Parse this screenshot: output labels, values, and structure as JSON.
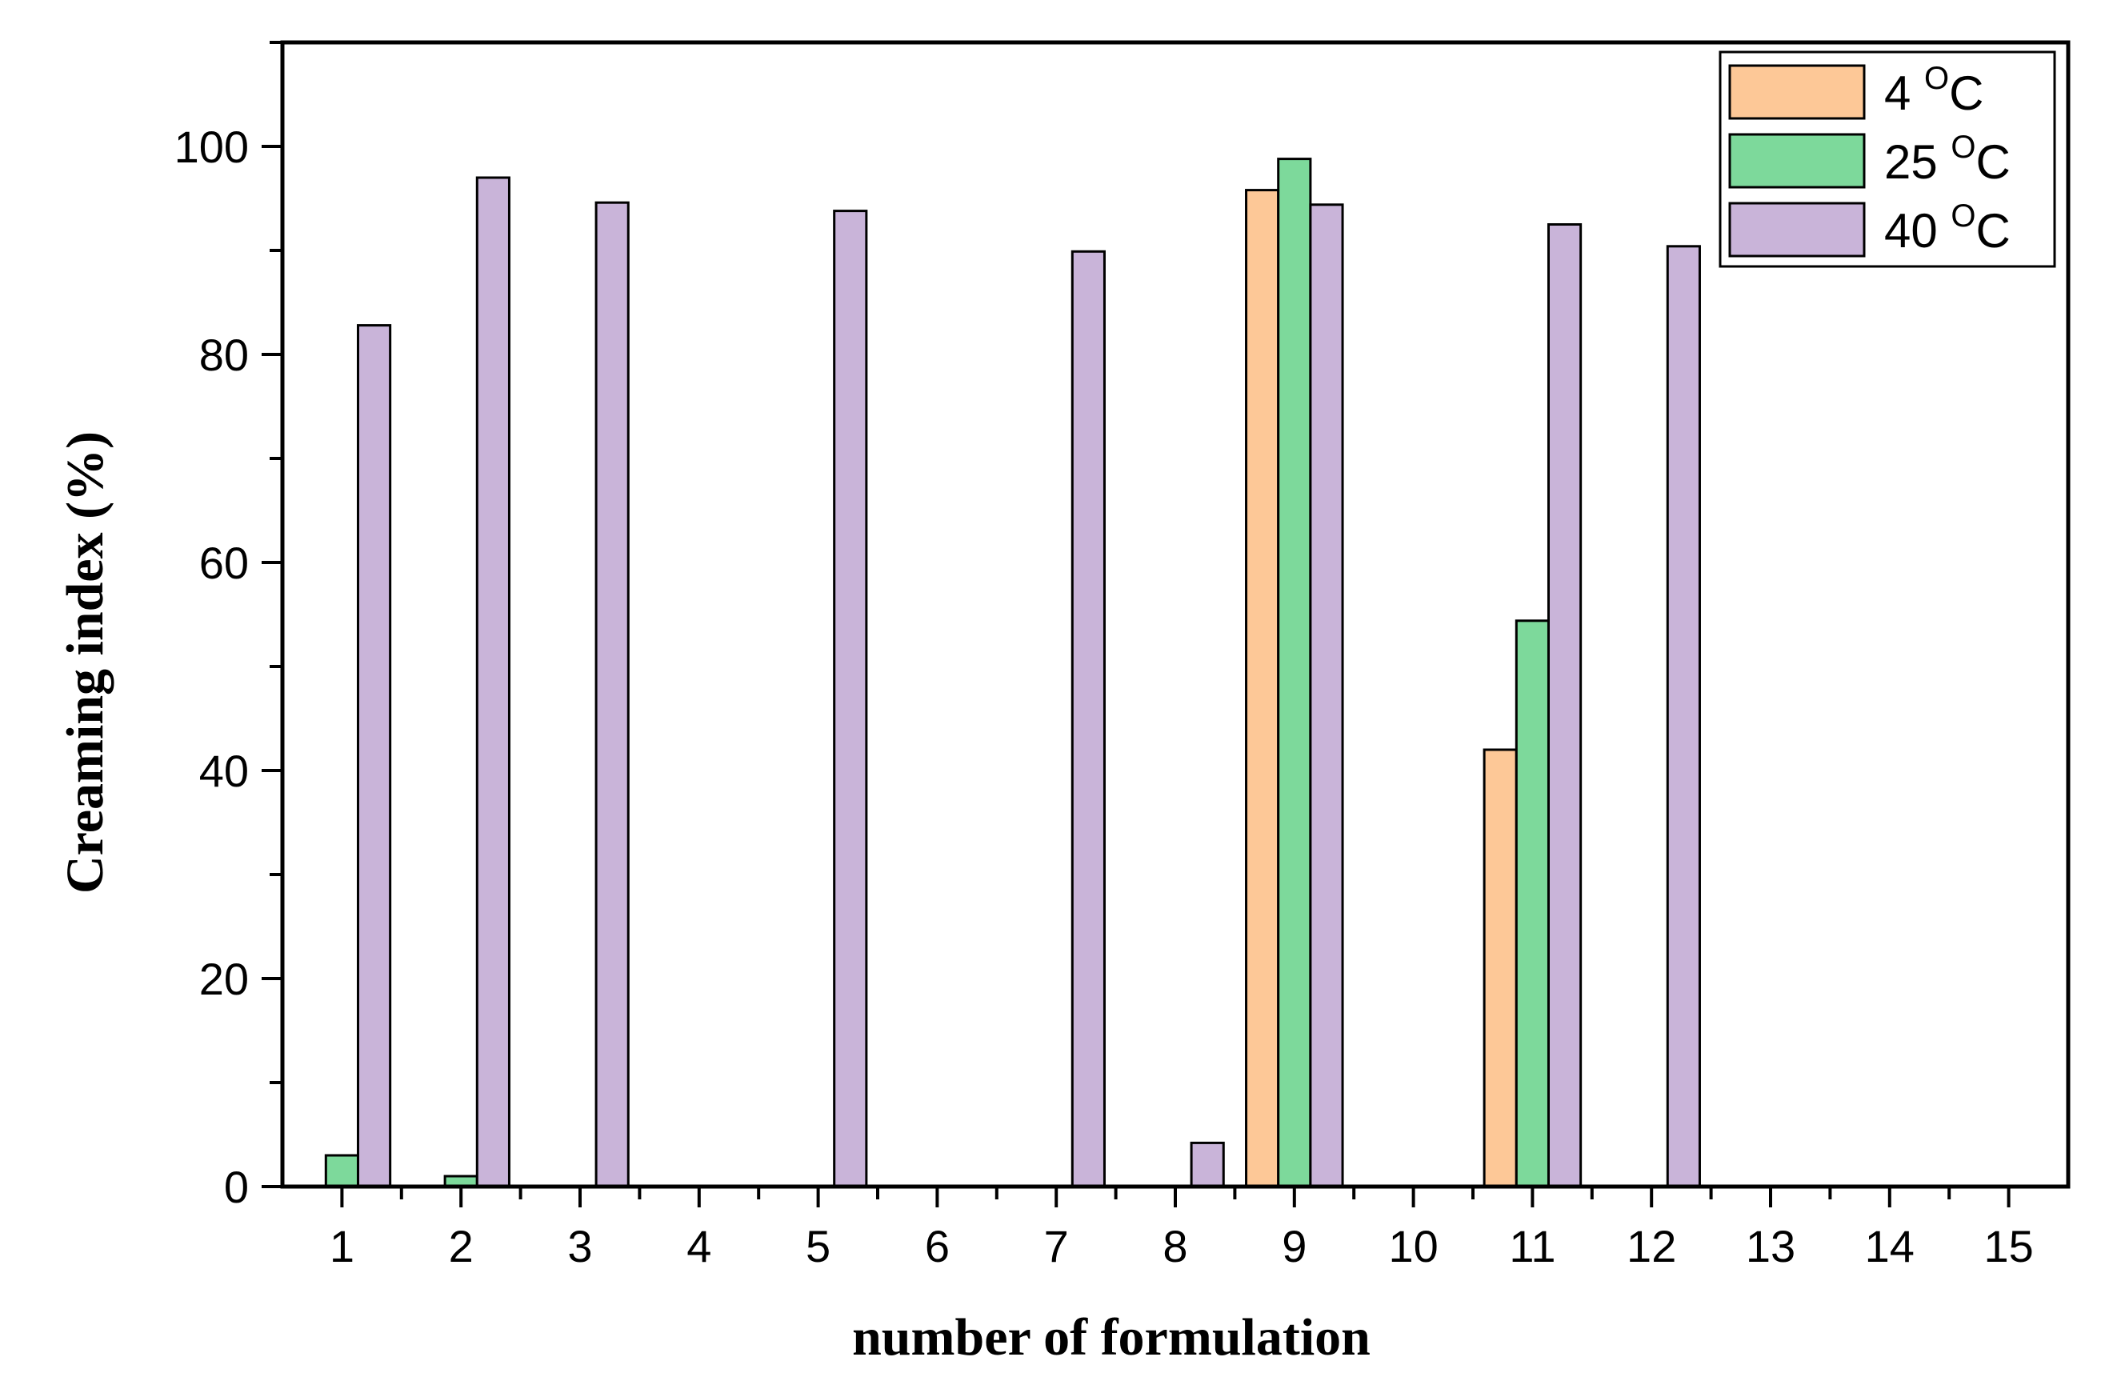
{
  "chart_data": {
    "type": "bar",
    "title": "",
    "xlabel": "number of formulation",
    "ylabel": "Creaming index (%)",
    "categories": [
      "1",
      "2",
      "3",
      "4",
      "5",
      "6",
      "7",
      "8",
      "9",
      "10",
      "11",
      "12",
      "13",
      "14",
      "15"
    ],
    "xlim": [
      0.5,
      15.5
    ],
    "ylim": [
      0,
      110
    ],
    "y_ticks": [
      0,
      20,
      40,
      60,
      80,
      100
    ],
    "legend_position": "top-right",
    "grid": false,
    "series": [
      {
        "name_main": "4 ",
        "name_sup": "O",
        "name_unit": "C",
        "color": "#FDC897",
        "values": [
          0,
          0,
          0,
          0,
          0,
          0,
          0,
          0,
          95.8,
          0,
          42,
          0,
          0,
          0,
          0
        ]
      },
      {
        "name_main": "25 ",
        "name_sup": "O",
        "name_unit": "C",
        "color": "#7DD99B",
        "values": [
          3,
          1,
          0,
          0,
          0,
          0,
          0,
          0,
          98.8,
          0,
          54.4,
          0,
          0,
          0,
          0
        ]
      },
      {
        "name_main": "40 ",
        "name_sup": "O",
        "name_unit": "C",
        "color": "#C9B4D9",
        "values": [
          82.8,
          97,
          94.6,
          0,
          93.8,
          0,
          89.9,
          4.2,
          94.4,
          0,
          92.5,
          90.4,
          0,
          0,
          0
        ]
      }
    ]
  }
}
